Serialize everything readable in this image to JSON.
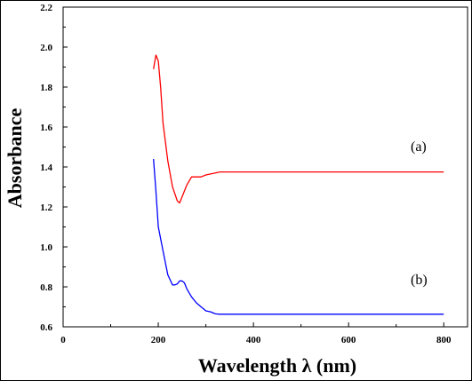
{
  "chart_data": {
    "type": "line",
    "xlabel": "Wavelength λ (nm)",
    "ylabel": "Absorbance",
    "xlim": [
      0,
      850
    ],
    "ylim": [
      0.6,
      2.2
    ],
    "x_ticks": [
      0,
      200,
      400,
      600,
      800
    ],
    "y_ticks": [
      0.6,
      0.8,
      1.0,
      1.2,
      1.4,
      1.6,
      1.8,
      2.0,
      2.2
    ],
    "x_tick_labels": [
      "0",
      "200",
      "400",
      "600",
      "800"
    ],
    "y_tick_labels": [
      "0.6",
      "0.8",
      "1.0",
      "1.2",
      "1.4",
      "1.6",
      "1.8",
      "2.0",
      "2.2"
    ],
    "grid": false,
    "series": [
      {
        "name": "(a)",
        "color": "#ff0000",
        "x": [
          190,
          195,
          200,
          205,
          210,
          220,
          230,
          240,
          245,
          250,
          260,
          270,
          280,
          290,
          300,
          320,
          330,
          350,
          400,
          500,
          600,
          700,
          800
        ],
        "y": [
          1.89,
          1.96,
          1.93,
          1.8,
          1.62,
          1.43,
          1.3,
          1.23,
          1.22,
          1.25,
          1.31,
          1.35,
          1.35,
          1.35,
          1.36,
          1.37,
          1.375,
          1.375,
          1.375,
          1.375,
          1.375,
          1.375,
          1.375
        ]
      },
      {
        "name": "(b)",
        "color": "#0000ff",
        "x": [
          190,
          195,
          200,
          210,
          220,
          230,
          235,
          240,
          245,
          250,
          255,
          260,
          270,
          280,
          290,
          300,
          310,
          320,
          330,
          400,
          500,
          600,
          700,
          800
        ],
        "y": [
          1.44,
          1.28,
          1.1,
          0.98,
          0.86,
          0.81,
          0.81,
          0.815,
          0.83,
          0.83,
          0.82,
          0.79,
          0.75,
          0.72,
          0.7,
          0.68,
          0.675,
          0.665,
          0.663,
          0.663,
          0.663,
          0.663,
          0.663,
          0.663
        ]
      }
    ]
  }
}
